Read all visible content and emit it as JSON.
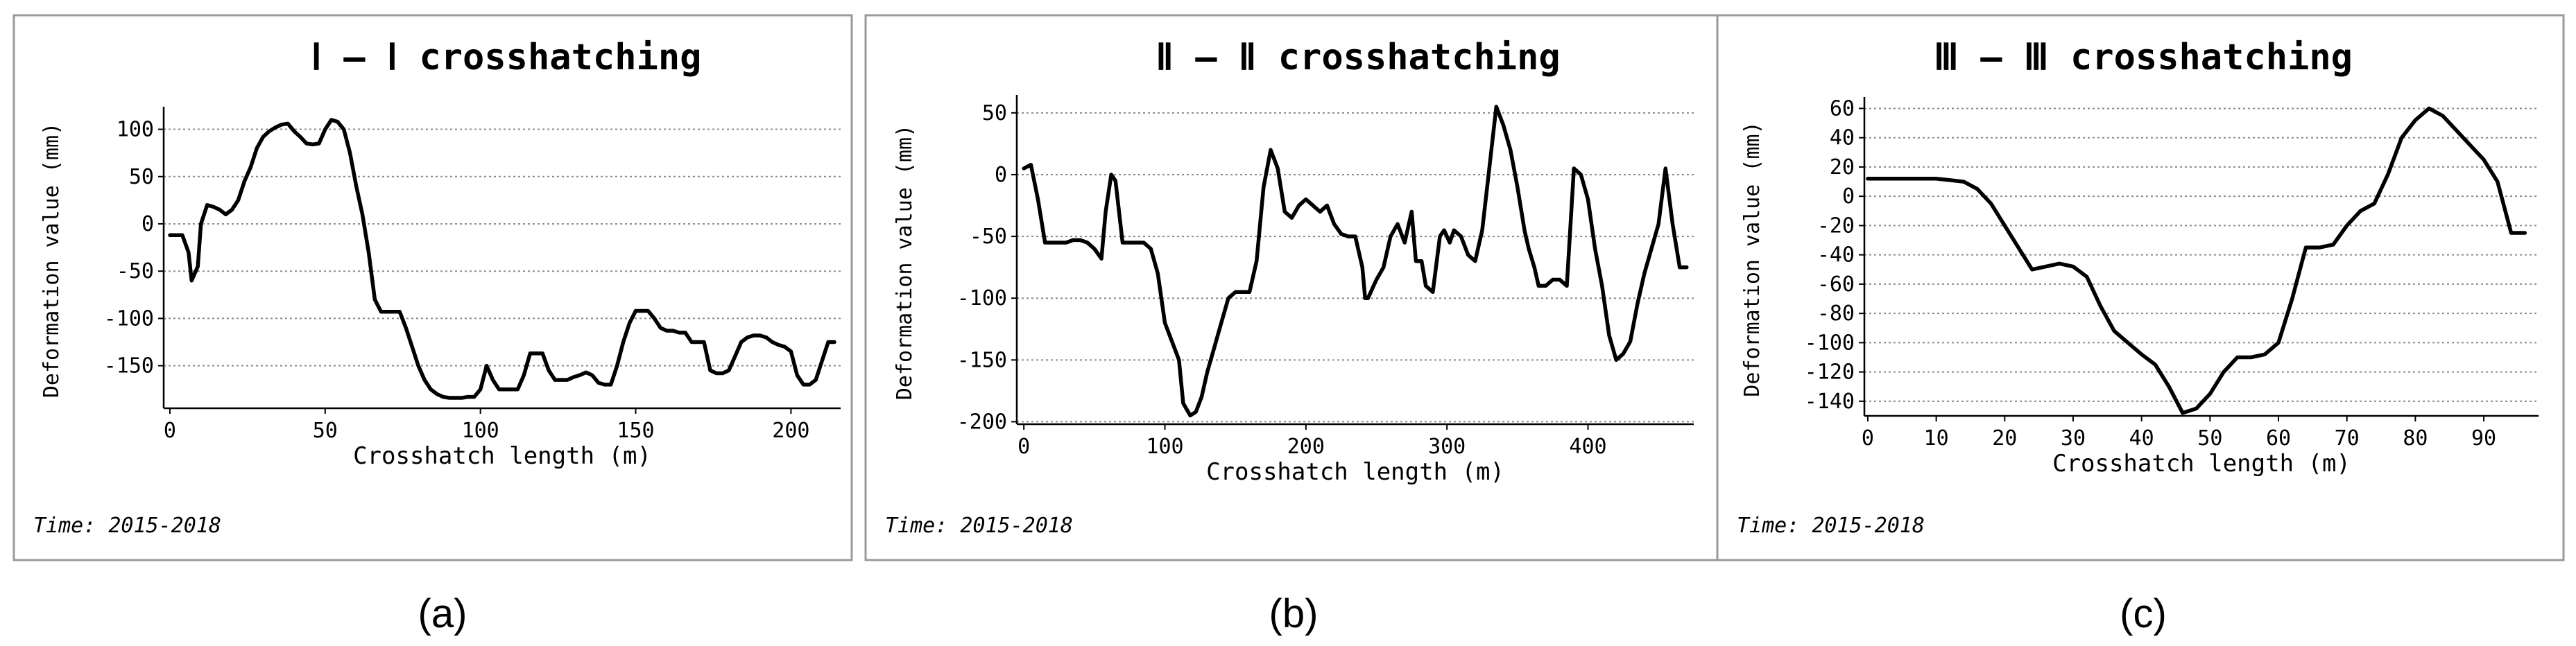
{
  "chart_data": [
    {
      "type": "line",
      "caption": "(a)",
      "title": "Ⅰ – Ⅰ crosshatching",
      "xlabel": "Crosshatch length (m)",
      "ylabel": "Deformation value (mm)",
      "time_label": "Time: 2015-2018",
      "xlim": [
        -2,
        216
      ],
      "ylim": [
        -195,
        118
      ],
      "xticks": [
        0,
        50,
        100,
        150,
        200
      ],
      "yticks": [
        100,
        50,
        0,
        -50,
        -100,
        -150
      ],
      "grid": true,
      "series": [
        {
          "x": [
            0,
            4,
            6,
            7,
            9,
            10,
            12,
            14,
            16,
            18,
            20,
            22,
            24,
            26,
            28,
            30,
            32,
            34,
            36,
            38,
            40,
            42,
            44,
            46,
            48,
            50,
            52,
            54,
            56,
            58,
            60,
            62,
            64,
            66,
            68,
            70,
            72,
            74,
            76,
            78,
            80,
            82,
            84,
            86,
            88,
            90,
            92,
            94,
            96,
            98,
            100,
            102,
            104,
            106,
            108,
            110,
            112,
            114,
            116,
            118,
            120,
            122,
            124,
            126,
            128,
            130,
            132,
            134,
            136,
            138,
            140,
            142,
            144,
            146,
            148,
            150,
            152,
            154,
            156,
            158,
            160,
            162,
            164,
            166,
            168,
            170,
            172,
            174,
            176,
            178,
            180,
            182,
            184,
            186,
            188,
            190,
            192,
            194,
            196,
            198,
            200,
            202,
            204,
            206,
            208,
            210,
            212,
            214
          ],
          "y": [
            -12,
            -12,
            -30,
            -60,
            -45,
            0,
            20,
            18,
            15,
            10,
            15,
            25,
            45,
            60,
            80,
            92,
            98,
            102,
            105,
            106,
            98,
            92,
            85,
            84,
            85,
            100,
            110,
            108,
            100,
            75,
            40,
            10,
            -30,
            -80,
            -93,
            -93,
            -93,
            -93,
            -110,
            -130,
            -150,
            -165,
            -175,
            -180,
            -183,
            -184,
            -184,
            -184,
            -183,
            -183,
            -175,
            -150,
            -165,
            -175,
            -175,
            -175,
            -175,
            -160,
            -137,
            -137,
            -137,
            -155,
            -165,
            -165,
            -165,
            -162,
            -160,
            -157,
            -160,
            -168,
            -170,
            -170,
            -150,
            -125,
            -105,
            -92,
            -92,
            -92,
            -100,
            -110,
            -113,
            -113,
            -115,
            -115,
            -125,
            -125,
            -125,
            -155,
            -158,
            -158,
            -155,
            -140,
            -125,
            -120,
            -118,
            -118,
            -120,
            -125,
            -128,
            -130,
            -135,
            -160,
            -170,
            -170,
            -165,
            -145,
            -125,
            -125
          ]
        }
      ]
    },
    {
      "type": "line",
      "caption": "(b)",
      "title": "Ⅱ – Ⅱ crosshatching",
      "xlabel": "Crosshatch length (m)",
      "ylabel": "Deformation value (mm)",
      "time_label": "Time: 2015-2018",
      "xlim": [
        -5,
        475
      ],
      "ylim": [
        -202,
        60
      ],
      "xticks": [
        0,
        100,
        200,
        300,
        400
      ],
      "yticks": [
        50,
        0,
        -50,
        -100,
        -150,
        -200
      ],
      "grid": true,
      "series": [
        {
          "x": [
            0,
            5,
            10,
            15,
            20,
            25,
            30,
            35,
            40,
            45,
            50,
            55,
            58,
            62,
            65,
            70,
            75,
            80,
            85,
            90,
            95,
            100,
            105,
            110,
            113,
            118,
            122,
            126,
            130,
            135,
            140,
            145,
            150,
            155,
            160,
            165,
            170,
            175,
            180,
            185,
            190,
            195,
            200,
            205,
            210,
            215,
            220,
            225,
            230,
            235,
            240,
            242,
            244,
            246,
            248,
            250,
            255,
            260,
            265,
            270,
            275,
            278,
            282,
            285,
            290,
            295,
            298,
            302,
            305,
            310,
            315,
            320,
            325,
            330,
            335,
            340,
            345,
            350,
            355,
            358,
            362,
            365,
            370,
            375,
            380,
            385,
            390,
            395,
            400,
            405,
            410,
            415,
            420,
            425,
            430,
            435,
            440,
            445,
            450,
            455,
            460,
            465,
            470
          ],
          "y": [
            5,
            8,
            -20,
            -55,
            -55,
            -55,
            -55,
            -53,
            -53,
            -55,
            -60,
            -68,
            -30,
            0,
            -5,
            -55,
            -55,
            -55,
            -55,
            -60,
            -80,
            -120,
            -135,
            -150,
            -185,
            -195,
            -192,
            -180,
            -160,
            -140,
            -120,
            -100,
            -95,
            -95,
            -95,
            -70,
            -10,
            20,
            5,
            -30,
            -35,
            -25,
            -20,
            -25,
            -30,
            -25,
            -40,
            -48,
            -50,
            -50,
            -75,
            -100,
            -100,
            -95,
            -90,
            -85,
            -75,
            -50,
            -40,
            -55,
            -30,
            -70,
            -70,
            -90,
            -95,
            -50,
            -45,
            -55,
            -45,
            -50,
            -65,
            -70,
            -45,
            5,
            55,
            40,
            20,
            -10,
            -45,
            -60,
            -75,
            -90,
            -90,
            -85,
            -85,
            -90,
            5,
            0,
            -20,
            -60,
            -90,
            -130,
            -150,
            -145,
            -135,
            -105,
            -80,
            -60,
            -40,
            5,
            -40,
            -75,
            -75
          ]
        }
      ]
    },
    {
      "type": "line",
      "caption": "(c)",
      "title": "Ⅲ – Ⅲ crosshatching",
      "xlabel": "Crosshatch length (m)",
      "ylabel": "Deformation value (mm)",
      "time_label": "Time: 2015-2018",
      "xlim": [
        -0.5,
        98
      ],
      "ylim": [
        -150,
        64
      ],
      "xticks": [
        0,
        10,
        20,
        30,
        40,
        50,
        60,
        70,
        80,
        90
      ],
      "yticks": [
        60,
        40,
        20,
        0,
        -20,
        -40,
        -60,
        -80,
        -100,
        -120,
        -140
      ],
      "grid": true,
      "series": [
        {
          "x": [
            0,
            2,
            4,
            6,
            8,
            10,
            12,
            14,
            16,
            18,
            20,
            22,
            24,
            26,
            28,
            30,
            32,
            34,
            36,
            38,
            40,
            42,
            44,
            46,
            48,
            50,
            52,
            54,
            56,
            58,
            60,
            62,
            64,
            66,
            68,
            70,
            72,
            74,
            76,
            78,
            80,
            82,
            84,
            86,
            88,
            90,
            92,
            94,
            96
          ],
          "y": [
            12,
            12,
            12,
            12,
            12,
            12,
            11,
            10,
            5,
            -5,
            -20,
            -35,
            -50,
            -48,
            -46,
            -48,
            -55,
            -75,
            -92,
            -100,
            -108,
            -115,
            -130,
            -148,
            -145,
            -135,
            -120,
            -110,
            -110,
            -108,
            -100,
            -70,
            -35,
            -35,
            -33,
            -20,
            -10,
            -5,
            15,
            40,
            52,
            60,
            55,
            45,
            35,
            25,
            10,
            -25,
            -25
          ]
        }
      ]
    }
  ]
}
